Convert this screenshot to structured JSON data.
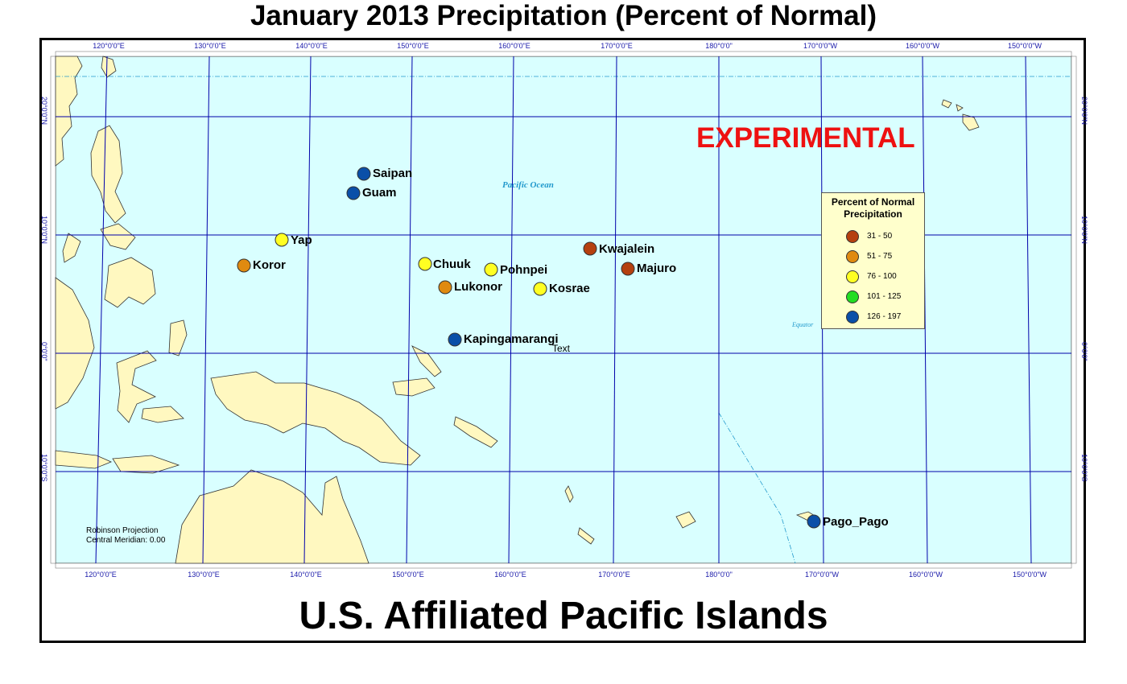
{
  "title": "January 2013 Precipitation (Percent of Normal)",
  "subtitle": "U.S. Affiliated Pacific Islands",
  "watermark": "EXPERIMENTAL",
  "ocean_label": "Pacific Ocean",
  "equator_label": "Equator",
  "stray_text": "Text",
  "projection_note": [
    "Robinson Projection",
    "Central Meridian: 0.00"
  ],
  "graticule": {
    "longitude_labels": [
      "120°0'0\"E",
      "130°0'0\"E",
      "140°0'0\"E",
      "150°0'0\"E",
      "160°0'0\"E",
      "170°0'0\"E",
      "180°0'0\"",
      "170°0'0\"W",
      "160°0'0\"W",
      "150°0'0\"W"
    ],
    "latitude_labels": [
      "20°0'0\"N",
      "10°0'0\"N",
      "0°0'0\"",
      "10°0'0\"S"
    ]
  },
  "legend": {
    "title": "Percent of Normal Precipitation",
    "classes": [
      {
        "label": "31 - 50",
        "color": "#b5400f"
      },
      {
        "label": "51 - 75",
        "color": "#e08a10"
      },
      {
        "label": "76 - 100",
        "color": "#ffff22"
      },
      {
        "label": "101 - 125",
        "color": "#22dd22"
      },
      {
        "label": "126 - 197",
        "color": "#0a4fa8"
      }
    ]
  },
  "stations": [
    {
      "name": "Saipan",
      "class": 4
    },
    {
      "name": "Guam",
      "class": 4
    },
    {
      "name": "Yap",
      "class": 2
    },
    {
      "name": "Koror",
      "class": 1
    },
    {
      "name": "Chuuk",
      "class": 2
    },
    {
      "name": "Pohnpei",
      "class": 2
    },
    {
      "name": "Lukonor",
      "class": 1
    },
    {
      "name": "Kosrae",
      "class": 2
    },
    {
      "name": "Kwajalein",
      "class": 0
    },
    {
      "name": "Majuro",
      "class": 0
    },
    {
      "name": "Kapingamarangi",
      "class": 4
    },
    {
      "name": "Pago_Pago",
      "class": 4
    }
  ],
  "colors": {
    "ocean": "#d9ffff",
    "land": "#fff8c0",
    "graticule": "#0000aa",
    "coast": "#333333"
  }
}
